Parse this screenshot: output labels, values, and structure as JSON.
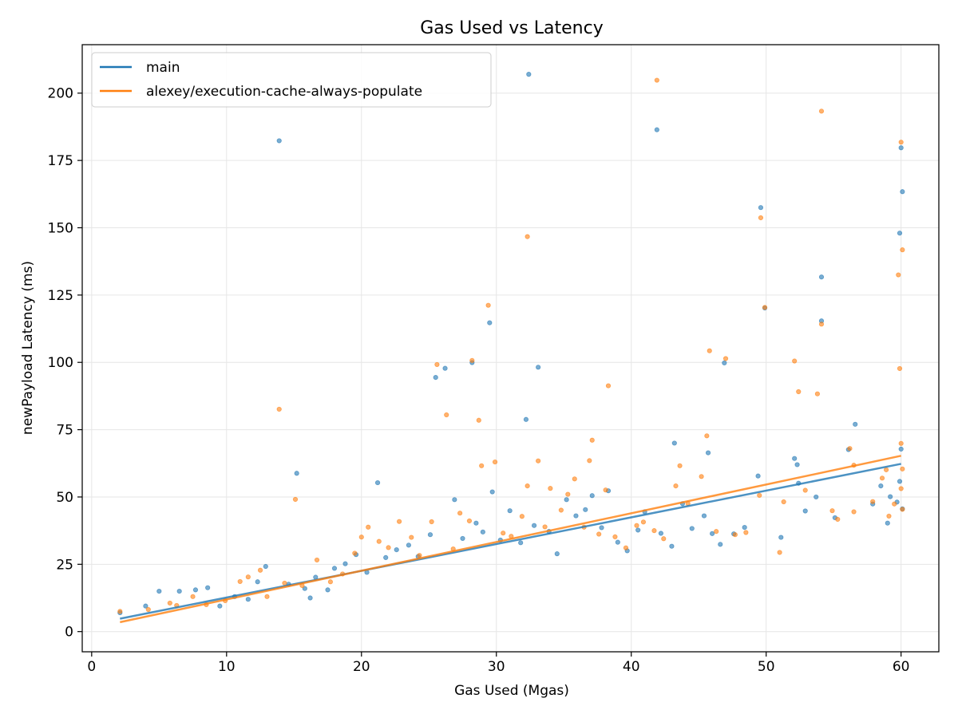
{
  "chart_data": {
    "type": "scatter",
    "title": "Gas Used vs Latency",
    "xlabel": "Gas Used (Mgas)",
    "ylabel": "newPayload Latency (ms)",
    "xlim": [
      -0.7,
      62.8
    ],
    "ylim": [
      -7.5,
      218
    ],
    "xticks": [
      0,
      10,
      20,
      30,
      40,
      50,
      60
    ],
    "yticks": [
      0,
      25,
      50,
      75,
      100,
      125,
      150,
      175,
      200
    ],
    "grid": true,
    "legend_position": "top-left",
    "series": [
      {
        "name": "main",
        "color": "#1f77b4",
        "trendline": [
          [
            2.1,
            4.8
          ],
          [
            60.0,
            62.3
          ]
        ],
        "points": [
          [
            2.1,
            7.0
          ],
          [
            4.0,
            9.5
          ],
          [
            5.0,
            15.0
          ],
          [
            6.5,
            15.0
          ],
          [
            7.7,
            15.5
          ],
          [
            8.6,
            16.3
          ],
          [
            9.5,
            9.5
          ],
          [
            10.6,
            13.0
          ],
          [
            11.6,
            12.0
          ],
          [
            12.3,
            18.5
          ],
          [
            12.9,
            24.2
          ],
          [
            13.9,
            182.3
          ],
          [
            14.6,
            17.6
          ],
          [
            15.2,
            58.8
          ],
          [
            15.8,
            16.0
          ],
          [
            16.2,
            12.5
          ],
          [
            16.6,
            20.2
          ],
          [
            17.5,
            15.5
          ],
          [
            18.0,
            23.5
          ],
          [
            18.8,
            25.2
          ],
          [
            19.6,
            28.6
          ],
          [
            20.4,
            22.0
          ],
          [
            21.2,
            55.3
          ],
          [
            21.8,
            27.5
          ],
          [
            22.6,
            30.4
          ],
          [
            23.5,
            32.1
          ],
          [
            24.2,
            27.9
          ],
          [
            25.1,
            36.0
          ],
          [
            25.5,
            94.4
          ],
          [
            26.2,
            97.8
          ],
          [
            26.9,
            49.0
          ],
          [
            27.5,
            34.6
          ],
          [
            28.2,
            99.9
          ],
          [
            28.5,
            40.3
          ],
          [
            29.0,
            37.0
          ],
          [
            29.5,
            114.7
          ],
          [
            29.7,
            51.9
          ],
          [
            30.3,
            34.0
          ],
          [
            31.0,
            44.9
          ],
          [
            31.8,
            33.0
          ],
          [
            32.2,
            78.8
          ],
          [
            32.4,
            207.0
          ],
          [
            32.8,
            39.4
          ],
          [
            33.1,
            98.2
          ],
          [
            33.9,
            37.2
          ],
          [
            34.5,
            28.9
          ],
          [
            35.2,
            49.0
          ],
          [
            35.9,
            43.0
          ],
          [
            36.6,
            45.3
          ],
          [
            37.1,
            50.5
          ],
          [
            37.8,
            38.6
          ],
          [
            38.3,
            52.3
          ],
          [
            39.0,
            33.2
          ],
          [
            39.7,
            30.0
          ],
          [
            40.5,
            37.7
          ],
          [
            41.0,
            44.5
          ],
          [
            41.9,
            186.4
          ],
          [
            42.2,
            36.5
          ],
          [
            43.0,
            31.7
          ],
          [
            43.2,
            70.0
          ],
          [
            43.8,
            47.5
          ],
          [
            44.5,
            38.3
          ],
          [
            45.4,
            43.0
          ],
          [
            45.7,
            66.4
          ],
          [
            46.0,
            36.4
          ],
          [
            46.6,
            32.4
          ],
          [
            46.9,
            99.8
          ],
          [
            47.6,
            36.3
          ],
          [
            48.4,
            38.7
          ],
          [
            49.4,
            57.8
          ],
          [
            49.6,
            157.5
          ],
          [
            49.9,
            120.2
          ],
          [
            51.1,
            35.0
          ],
          [
            52.1,
            64.3
          ],
          [
            52.3,
            62.0
          ],
          [
            52.4,
            55.1
          ],
          [
            52.9,
            44.8
          ],
          [
            53.7,
            50.0
          ],
          [
            54.1,
            131.7
          ],
          [
            54.1,
            115.4
          ],
          [
            55.1,
            42.3
          ],
          [
            56.1,
            67.6
          ],
          [
            56.6,
            77.0
          ],
          [
            57.9,
            47.4
          ],
          [
            58.5,
            54.1
          ],
          [
            59.0,
            40.3
          ],
          [
            59.2,
            50.1
          ],
          [
            59.7,
            48.1
          ],
          [
            59.9,
            148.0
          ],
          [
            60.0,
            179.7
          ],
          [
            60.1,
            163.4
          ],
          [
            60.0,
            67.8
          ],
          [
            59.9,
            55.8
          ],
          [
            60.1,
            45.6
          ]
        ]
      },
      {
        "name": "alexey/execution-cache-always-populate",
        "color": "#ff7f0e",
        "trendline": [
          [
            2.1,
            3.5
          ],
          [
            60.0,
            65.3
          ]
        ],
        "points": [
          [
            2.1,
            7.5
          ],
          [
            4.2,
            8.2
          ],
          [
            5.8,
            10.6
          ],
          [
            6.3,
            9.7
          ],
          [
            7.5,
            13.0
          ],
          [
            8.5,
            10.0
          ],
          [
            9.9,
            11.5
          ],
          [
            11.0,
            18.6
          ],
          [
            11.6,
            20.3
          ],
          [
            12.5,
            22.8
          ],
          [
            13.0,
            13.0
          ],
          [
            13.9,
            82.6
          ],
          [
            14.3,
            18.0
          ],
          [
            15.1,
            49.1
          ],
          [
            15.6,
            17.1
          ],
          [
            16.7,
            26.6
          ],
          [
            17.7,
            18.5
          ],
          [
            18.6,
            21.4
          ],
          [
            19.5,
            29.1
          ],
          [
            20.0,
            35.1
          ],
          [
            20.5,
            38.8
          ],
          [
            21.3,
            33.5
          ],
          [
            22.0,
            31.2
          ],
          [
            22.8,
            40.9
          ],
          [
            23.7,
            35.0
          ],
          [
            24.3,
            28.3
          ],
          [
            25.2,
            40.8
          ],
          [
            25.6,
            99.2
          ],
          [
            26.3,
            80.5
          ],
          [
            26.8,
            30.7
          ],
          [
            27.3,
            44.0
          ],
          [
            28.0,
            41.1
          ],
          [
            28.2,
            100.7
          ],
          [
            28.7,
            78.5
          ],
          [
            28.9,
            61.6
          ],
          [
            29.4,
            121.2
          ],
          [
            29.9,
            63.0
          ],
          [
            30.5,
            36.6
          ],
          [
            31.1,
            35.4
          ],
          [
            31.9,
            42.8
          ],
          [
            32.3,
            146.7
          ],
          [
            32.3,
            54.1
          ],
          [
            33.1,
            63.4
          ],
          [
            33.6,
            38.9
          ],
          [
            34.0,
            53.2
          ],
          [
            34.8,
            45.1
          ],
          [
            35.3,
            51.0
          ],
          [
            35.8,
            56.7
          ],
          [
            36.5,
            38.8
          ],
          [
            36.9,
            63.5
          ],
          [
            37.1,
            71.1
          ],
          [
            37.6,
            36.2
          ],
          [
            38.1,
            52.6
          ],
          [
            38.3,
            91.3
          ],
          [
            38.8,
            35.2
          ],
          [
            39.6,
            31.1
          ],
          [
            40.4,
            39.4
          ],
          [
            40.9,
            40.7
          ],
          [
            41.7,
            37.5
          ],
          [
            41.9,
            204.8
          ],
          [
            42.4,
            34.5
          ],
          [
            43.3,
            54.1
          ],
          [
            43.6,
            61.6
          ],
          [
            44.2,
            47.6
          ],
          [
            45.2,
            57.6
          ],
          [
            45.6,
            72.7
          ],
          [
            45.8,
            104.3
          ],
          [
            46.3,
            37.2
          ],
          [
            47.0,
            101.4
          ],
          [
            47.7,
            36.0
          ],
          [
            48.5,
            36.8
          ],
          [
            49.5,
            50.6
          ],
          [
            49.6,
            153.7
          ],
          [
            49.9,
            120.4
          ],
          [
            51.0,
            29.4
          ],
          [
            51.3,
            48.2
          ],
          [
            52.1,
            100.5
          ],
          [
            52.4,
            89.1
          ],
          [
            52.9,
            52.5
          ],
          [
            53.8,
            88.3
          ],
          [
            54.1,
            193.3
          ],
          [
            54.1,
            114.2
          ],
          [
            54.9,
            44.9
          ],
          [
            55.3,
            41.7
          ],
          [
            56.2,
            68.0
          ],
          [
            56.5,
            61.8
          ],
          [
            56.5,
            44.5
          ],
          [
            57.9,
            48.3
          ],
          [
            58.6,
            57.0
          ],
          [
            58.9,
            60.1
          ],
          [
            59.1,
            42.9
          ],
          [
            59.5,
            47.4
          ],
          [
            59.8,
            132.5
          ],
          [
            59.9,
            97.7
          ],
          [
            60.0,
            181.8
          ],
          [
            60.1,
            141.8
          ],
          [
            60.0,
            69.9
          ],
          [
            60.1,
            60.4
          ],
          [
            60.0,
            53.1
          ],
          [
            60.1,
            45.4
          ]
        ]
      }
    ]
  }
}
